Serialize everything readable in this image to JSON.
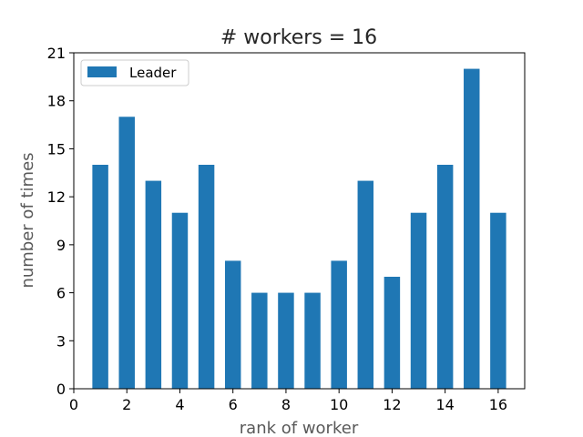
{
  "chart_data": {
    "type": "bar",
    "title": "# workers = 16",
    "xlabel": "rank of worker",
    "ylabel": "number of times",
    "xlim": [
      0,
      17
    ],
    "ylim": [
      0,
      21
    ],
    "xticks": [
      0,
      2,
      4,
      6,
      8,
      10,
      12,
      14,
      16
    ],
    "yticks": [
      0,
      3,
      6,
      9,
      12,
      15,
      18,
      21
    ],
    "grid": false,
    "legend": {
      "placement": "top-left",
      "entries": [
        "Leader"
      ]
    },
    "bar_color": "#1f77b4",
    "series": [
      {
        "name": "Leader",
        "x": [
          1,
          2,
          3,
          4,
          5,
          6,
          7,
          8,
          9,
          10,
          11,
          12,
          13,
          14,
          15,
          16
        ],
        "values": [
          14,
          17,
          13,
          11,
          14,
          8,
          6,
          6,
          6,
          8,
          13,
          7,
          11,
          14,
          20,
          11
        ]
      }
    ]
  }
}
